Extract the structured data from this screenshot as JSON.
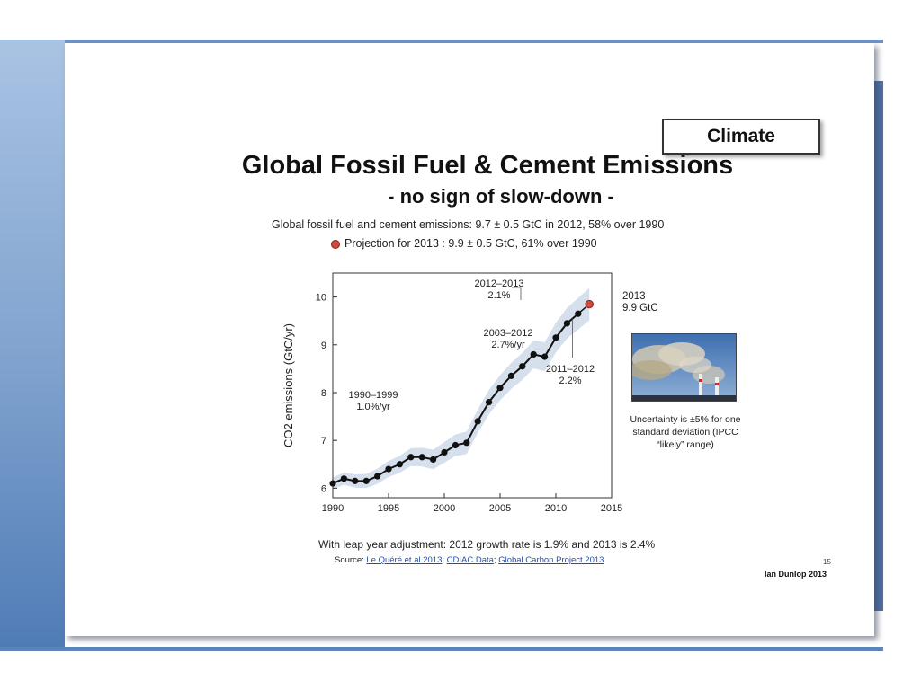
{
  "slide": {
    "badge": "Climate",
    "title": "Global Fossil Fuel & Cement Emissions",
    "subtitle": "- no sign of slow-down -",
    "line1": "Global fossil fuel and cement emissions: 9.7 ± 0.5 GtC in 2012, 58% over 1990",
    "line2": "Projection for 2013 : 9.9 ± 0.5 GtC, 61% over 1990",
    "note_2013": [
      "2013",
      "9.9 GtC"
    ],
    "uncertainty": "Uncertainty is ±5% for one standard deviation (IPCC “likely” range)",
    "leap_year": "With leap year adjustment: 2012 growth rate is 1.9% and 2013 is 2.4%",
    "source_label": "Source:",
    "source_links": [
      "Le Quéré et al 2013",
      "CDIAC Data",
      "Global Carbon Project 2013"
    ],
    "page_number": "15",
    "author": "Ian Dunlop 2013",
    "photo_icon": "smokestacks-photo"
  },
  "chart_data": {
    "type": "line",
    "title": "",
    "xlabel": "",
    "ylabel": "CO2 emissions (GtC/yr)",
    "xlim": [
      1990,
      2015
    ],
    "ylim": [
      5.8,
      10.5
    ],
    "xticks": [
      1990,
      1995,
      2000,
      2005,
      2010,
      2015
    ],
    "yticks": [
      6,
      7,
      8,
      9,
      10
    ],
    "series": [
      {
        "x": [
          1990,
          1991,
          1992,
          1993,
          1994,
          1995,
          1996,
          1997,
          1998,
          1999,
          2000,
          2001,
          2002,
          2003,
          2004,
          2005,
          2006,
          2007,
          2008,
          2009,
          2010,
          2011,
          2012
        ],
        "values": [
          6.1,
          6.2,
          6.15,
          6.15,
          6.25,
          6.4,
          6.5,
          6.65,
          6.65,
          6.6,
          6.75,
          6.9,
          6.95,
          7.4,
          7.8,
          8.1,
          8.35,
          8.55,
          8.8,
          8.75,
          9.15,
          9.45,
          9.65
        ],
        "color": "#111111"
      }
    ],
    "uncertainty_band": "±5%",
    "projection": {
      "x": 2013,
      "y": 9.85,
      "color": "#d2473a"
    },
    "annotations": [
      {
        "text": [
          "1990–1999",
          "1.0%/yr"
        ]
      },
      {
        "text": [
          "2003–2012",
          "2.7%/yr"
        ]
      },
      {
        "text": [
          "2012–2013",
          "2.1%"
        ]
      },
      {
        "text": [
          "2011–2012",
          "2.2%"
        ]
      }
    ],
    "grid": false
  }
}
